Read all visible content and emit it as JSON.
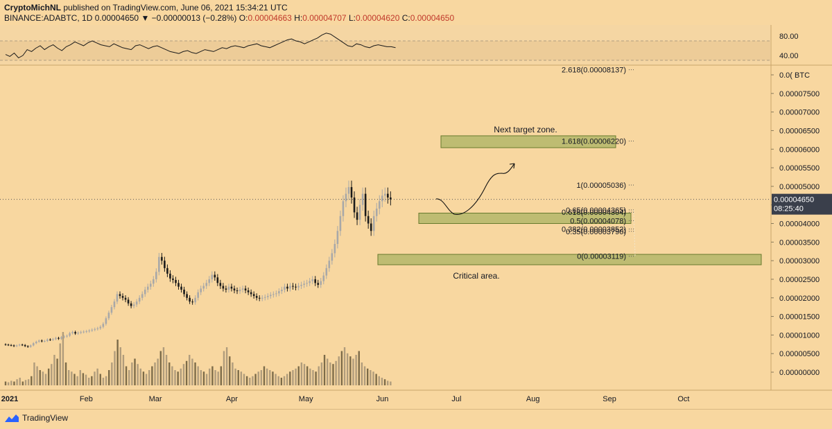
{
  "header": {
    "author": "CryptoMichNL",
    "published_text": "published on TradingView.com, June 06, 2021 15:34:21 UTC",
    "symbol": "BINANCE:ADABTC, 1D",
    "last": "0.00004650",
    "change": "▼ −0.00000013 (−0.28%)",
    "o_label": "O:",
    "o_value": "0.00004663",
    "h_label": "H:",
    "h_value": "0.00004707",
    "l_label": "L:",
    "l_value": "0.00004620",
    "c_label": "C:",
    "c_value": "0.00004650"
  },
  "footer": {
    "brand": "TradingView"
  },
  "colors": {
    "background": "#f8d7a0",
    "zone_fill": "#b5b86a",
    "zone_stroke": "#4e6a1a",
    "candle_up": "#a8a8a8",
    "candle_down": "#1a1a1a",
    "last_price_bg": "#3a3f4b"
  },
  "chart_data": {
    "type": "candlestick",
    "price_axis": {
      "unit": "BTC",
      "ticks": [
        "0.00008000",
        "0.00007500",
        "0.00007000",
        "0.00006500",
        "0.00006000",
        "0.00005500",
        "0.00005000",
        "0.00004500",
        "0.00004000",
        "0.00003500",
        "0.00003000",
        "0.00002500",
        "0.00002000",
        "0.00001500",
        "0.00001000",
        "0.00000500",
        "0.00000000"
      ],
      "top_tick_label": "0.0( BTC",
      "last_price_label": "0.00004650",
      "countdown_label": "08:25:40",
      "last_price": 4.65e-05
    },
    "time_axis": {
      "labels": [
        "2021",
        "Feb",
        "Mar",
        "Apr",
        "May",
        "Jun",
        "Jul",
        "Aug",
        "Sep",
        "Oct"
      ],
      "months": [
        "2021-01",
        "2021-02",
        "2021-03",
        "2021-04",
        "2021-05",
        "2021-06",
        "2021-07",
        "2021-08",
        "2021-09",
        "2021-10"
      ]
    },
    "rsi": {
      "ticks": [
        "80.00",
        "40.00"
      ],
      "upper_band": 70,
      "lower_band": 30,
      "values": [
        42,
        38,
        45,
        35,
        40,
        52,
        48,
        55,
        60,
        52,
        58,
        62,
        55,
        50,
        58,
        62,
        68,
        64,
        60,
        66,
        70,
        66,
        62,
        60,
        58,
        64,
        60,
        56,
        54,
        52,
        60,
        62,
        58,
        54,
        58,
        60,
        56,
        52,
        48,
        46,
        44,
        48,
        50,
        46,
        44,
        48,
        52,
        50,
        48,
        52,
        56,
        54,
        58,
        60,
        58,
        56,
        60,
        62,
        64,
        60,
        58,
        56,
        60,
        64,
        68,
        72,
        74,
        70,
        68,
        64,
        68,
        72,
        76,
        82,
        86,
        84,
        78,
        72,
        66,
        60,
        58,
        64,
        62,
        58,
        56,
        60,
        62,
        60,
        58,
        58,
        56
      ]
    },
    "candles": {
      "start": "2021-01-01",
      "close": [
        7.4e-06,
        7.3e-06,
        7.2e-06,
        7e-06,
        7.2e-06,
        7.4e-06,
        7.3e-06,
        7e-06,
        6.8e-06,
        7.2e-06,
        7.8e-06,
        8.2e-06,
        8.5e-06,
        8.3e-06,
        8.4e-06,
        8.8e-06,
        8.7e-06,
        8.9e-06,
        9.2e-06,
        9e-06,
        9.4e-06,
        9.6e-06,
        9.8e-06,
        1.05e-05,
        1.08e-05,
        1.04e-05,
        1.06e-05,
        1.08e-05,
        1.09e-05,
        1.1e-05,
        1.12e-05,
        1.14e-05,
        1.16e-05,
        1.18e-05,
        1.22e-05,
        1.3e-05,
        1.45e-05,
        1.6e-05,
        1.75e-05,
        1.9e-05,
        2.1e-05,
        2.05e-05,
        2e-05,
        1.95e-05,
        1.85e-05,
        1.78e-05,
        1.82e-05,
        1.9e-05,
        2e-05,
        2.1e-05,
        2.22e-05,
        2.3e-05,
        2.38e-05,
        2.5e-05,
        2.7e-05,
        3.1e-05,
        3e-05,
        2.8e-05,
        2.65e-05,
        2.52e-05,
        2.48e-05,
        2.4e-05,
        2.3e-05,
        2.22e-05,
        2.1e-05,
        2e-05,
        1.9e-05,
        1.88e-05,
        2e-05,
        2.15e-05,
        2.25e-05,
        2.32e-05,
        2.4e-05,
        2.5e-05,
        2.62e-05,
        2.55e-05,
        2.4e-05,
        2.32e-05,
        2.25e-05,
        2.22e-05,
        2.3e-05,
        2.25e-05,
        2.2e-05,
        2.18e-05,
        2.22e-05,
        2.25e-05,
        2.2e-05,
        2.15e-05,
        2.1e-05,
        2.05e-05,
        2e-05,
        1.98e-05,
        2e-05,
        2.02e-05,
        2.05e-05,
        2.08e-05,
        2.1e-05,
        2.12e-05,
        2.18e-05,
        2.22e-05,
        2.3e-05,
        2.25e-05,
        2.32e-05,
        2.3e-05,
        2.28e-05,
        2.32e-05,
        2.35e-05,
        2.38e-05,
        2.4e-05,
        2.45e-05,
        2.5e-05,
        2.4e-05,
        2.35e-05,
        2.45e-05,
        2.6e-05,
        2.8e-05,
        3e-05,
        3.2e-05,
        3.45e-05,
        3.8e-05,
        4.2e-05,
        4.6e-05,
        4.8e-05,
        4.98e-05,
        4.7e-05,
        4.3e-05,
        4.1e-05,
        4.5e-05,
        4.8e-05,
        4.2e-05,
        4e-05,
        3.8e-05,
        4.2e-05,
        4.4e-05,
        4.6e-05,
        4.75e-05,
        4.8e-05,
        4.7e-05,
        4.65e-05
      ],
      "open": [
        7.5e-06,
        7.4e-06,
        7.3e-06,
        7.2e-06,
        7e-06,
        7.2e-06,
        7.4e-06,
        7.3e-06,
        7e-06,
        6.8e-06,
        7.2e-06,
        7.8e-06,
        8.2e-06,
        8.5e-06,
        8.3e-06,
        8.4e-06,
        8.8e-06,
        8.7e-06,
        8.9e-06,
        9.2e-06,
        9e-06,
        9.4e-06,
        9.6e-06,
        9.8e-06,
        1.05e-05,
        1.08e-05,
        1.04e-05,
        1.06e-05,
        1.08e-05,
        1.09e-05,
        1.1e-05,
        1.12e-05,
        1.14e-05,
        1.16e-05,
        1.18e-05,
        1.22e-05,
        1.3e-05,
        1.45e-05,
        1.6e-05,
        1.75e-05,
        1.9e-05,
        2.1e-05,
        2.05e-05,
        2e-05,
        1.95e-05,
        1.85e-05,
        1.78e-05,
        1.82e-05,
        1.9e-05,
        2e-05,
        2.1e-05,
        2.22e-05,
        2.3e-05,
        2.38e-05,
        2.5e-05,
        2.7e-05,
        3.1e-05,
        3e-05,
        2.8e-05,
        2.65e-05,
        2.52e-05,
        2.48e-05,
        2.4e-05,
        2.3e-05,
        2.22e-05,
        2.1e-05,
        2e-05,
        1.9e-05,
        1.88e-05,
        2e-05,
        2.15e-05,
        2.25e-05,
        2.32e-05,
        2.4e-05,
        2.5e-05,
        2.62e-05,
        2.55e-05,
        2.4e-05,
        2.32e-05,
        2.25e-05,
        2.22e-05,
        2.3e-05,
        2.25e-05,
        2.2e-05,
        2.18e-05,
        2.22e-05,
        2.25e-05,
        2.2e-05,
        2.15e-05,
        2.1e-05,
        2.05e-05,
        2e-05,
        1.98e-05,
        2e-05,
        2.02e-05,
        2.05e-05,
        2.08e-05,
        2.1e-05,
        2.12e-05,
        2.18e-05,
        2.22e-05,
        2.3e-05,
        2.25e-05,
        2.32e-05,
        2.3e-05,
        2.28e-05,
        2.32e-05,
        2.35e-05,
        2.38e-05,
        2.4e-05,
        2.45e-05,
        2.5e-05,
        2.4e-05,
        2.35e-05,
        2.45e-05,
        2.6e-05,
        2.8e-05,
        3e-05,
        3.2e-05,
        3.45e-05,
        3.8e-05,
        4.2e-05,
        4.6e-05,
        4.8e-05,
        4.98e-05,
        4.7e-05,
        4.3e-05,
        4.1e-05,
        4.5e-05,
        4.8e-05,
        4.2e-05,
        4e-05,
        3.8e-05,
        4.2e-05,
        4.4e-05,
        4.6e-05,
        4.75e-05,
        4.8e-05,
        4.7e-05
      ]
    },
    "volume": [
      0.05,
      0.04,
      0.06,
      0.05,
      0.08,
      0.1,
      0.05,
      0.07,
      0.08,
      0.12,
      0.3,
      0.25,
      0.2,
      0.18,
      0.15,
      0.22,
      0.28,
      0.4,
      0.35,
      0.55,
      0.7,
      0.3,
      0.2,
      0.18,
      0.15,
      0.12,
      0.2,
      0.16,
      0.14,
      0.1,
      0.12,
      0.18,
      0.22,
      0.15,
      0.1,
      0.12,
      0.2,
      0.3,
      0.45,
      0.6,
      0.5,
      0.4,
      0.25,
      0.2,
      0.3,
      0.35,
      0.28,
      0.22,
      0.18,
      0.15,
      0.2,
      0.25,
      0.3,
      0.35,
      0.45,
      0.5,
      0.4,
      0.3,
      0.25,
      0.2,
      0.18,
      0.22,
      0.28,
      0.32,
      0.4,
      0.35,
      0.3,
      0.25,
      0.2,
      0.18,
      0.15,
      0.22,
      0.25,
      0.2,
      0.18,
      0.25,
      0.45,
      0.5,
      0.38,
      0.3,
      0.22,
      0.2,
      0.18,
      0.15,
      0.12,
      0.1,
      0.12,
      0.15,
      0.18,
      0.2,
      0.25,
      0.22,
      0.2,
      0.18,
      0.15,
      0.12,
      0.1,
      0.12,
      0.15,
      0.18,
      0.2,
      0.22,
      0.25,
      0.3,
      0.28,
      0.25,
      0.22,
      0.2,
      0.18,
      0.25,
      0.3,
      0.4,
      0.35,
      0.3,
      0.28,
      0.32,
      0.38,
      0.45,
      0.5,
      0.42,
      0.38,
      0.35,
      0.4,
      0.45,
      0.3,
      0.25,
      0.22,
      0.2,
      0.18,
      0.15,
      0.12,
      0.1,
      0.08,
      0.06,
      0.05
    ],
    "fibonacci": [
      {
        "label": "2.618(0.00008137)",
        "value": 8.137e-05
      },
      {
        "label": "1.618(0.00006220)",
        "value": 6.22e-05
      },
      {
        "label": "1(0.00005036)",
        "value": 5.036e-05
      },
      {
        "label": "0.65(0.00004365)",
        "value": 4.365e-05
      },
      {
        "label": "0.618(0.00004304)",
        "value": 4.304e-05
      },
      {
        "label": "0.5(0.00004078)",
        "value": 4.078e-05
      },
      {
        "label": "0.382(0.00003852)",
        "value": 3.852e-05
      },
      {
        "label": "0.35(0.00003790)",
        "value": 3.79e-05
      },
      {
        "label": "0(0.00003119)",
        "value": 3.119e-05
      }
    ],
    "zones": [
      {
        "name": "next-target",
        "low": 6.04e-05,
        "high": 6.36e-05
      },
      {
        "name": "support",
        "low": 4e-05,
        "high": 4.28e-05
      },
      {
        "name": "critical",
        "low": 2.89e-05,
        "high": 3.17e-05
      }
    ],
    "annotations": {
      "next_target": "Next target zone.",
      "critical": "Critical area."
    }
  }
}
